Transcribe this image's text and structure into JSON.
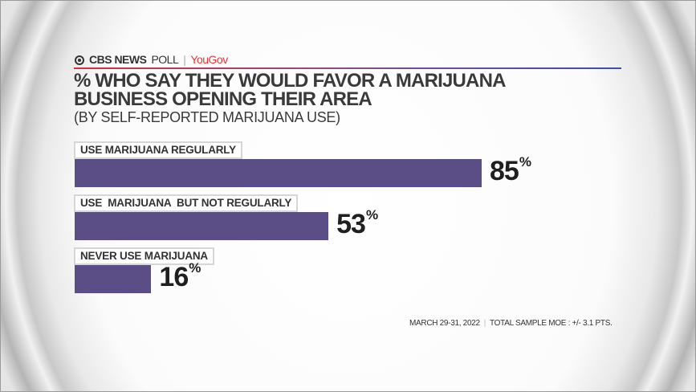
{
  "header": {
    "brand": "CBS NEWS",
    "poll": "POLL",
    "separator": "|",
    "partner": "YouGov"
  },
  "chart_data": {
    "type": "bar",
    "orientation": "horizontal",
    "title": "% WHO SAY THEY WOULD FAVOR A MARIJUANA BUSINESS OPENING  THEIR AREA",
    "subtitle": "(BY SELF-REPORTED MARIJUANA USE)",
    "categories": [
      "USE MARIJUANA REGULARLY",
      "USE  MARIJUANA  BUT NOT REGULARLY",
      "NEVER USE MARIJUANA"
    ],
    "values": [
      85,
      53,
      16
    ],
    "value_labels": [
      "85",
      "53",
      "16"
    ],
    "unit": "%",
    "xlim": [
      0,
      100
    ],
    "bar_color": "#5b4d86",
    "grid": false
  },
  "footer": {
    "date": "MARCH 29-31, 2022",
    "separator": "|",
    "moe": "TOTAL SAMPLE MOE : +/- 3.1 PTS."
  }
}
